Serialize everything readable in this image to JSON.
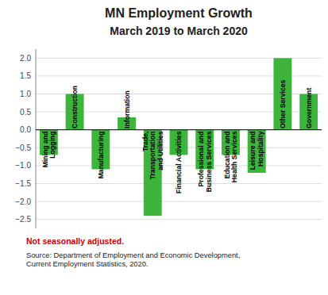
{
  "chart_data": {
    "type": "bar",
    "title": "MN Employment Growth",
    "subtitle": "March 2019 to March 2020",
    "categories": [
      "Mining and\nLogging",
      "Construction",
      "Manufacturing",
      "Information",
      "Trade,\nTransportation\nand Utilities",
      "Financial Activities",
      "Professional and\nBusiness Services",
      "Education and\nHealth Services",
      "Leisure and\nHospitality",
      "Other Services",
      "Government"
    ],
    "values": [
      -0.7,
      1.0,
      -1.1,
      0.35,
      -2.4,
      -0.7,
      -1.1,
      -0.7,
      -1.2,
      2.0,
      1.0
    ],
    "color": "#3db53d",
    "ylim": [
      -2.75,
      2.25
    ],
    "yticks": [
      {
        "value": -2.5,
        "label": "−2.5"
      },
      {
        "value": -2.0,
        "label": "−2.0"
      },
      {
        "value": -1.5,
        "label": "−1.5"
      },
      {
        "value": -1.0,
        "label": "−1.0"
      },
      {
        "value": -0.5,
        "label": "−0.5"
      },
      {
        "value": 0.0,
        "label": "0.0"
      },
      0.5,
      {
        "value": 1.0,
        "label": "1.0"
      },
      1.5,
      {
        "value": 2.0,
        "label": "2.0"
      }
    ],
    "grid": true,
    "annotations": [
      {
        "text": "Not seasonally adjusted.",
        "color": "#cc0000"
      },
      {
        "text": "Source: Department of Employment and Economic Development,\nCurrent Employment Statistics, 2020."
      }
    ]
  }
}
